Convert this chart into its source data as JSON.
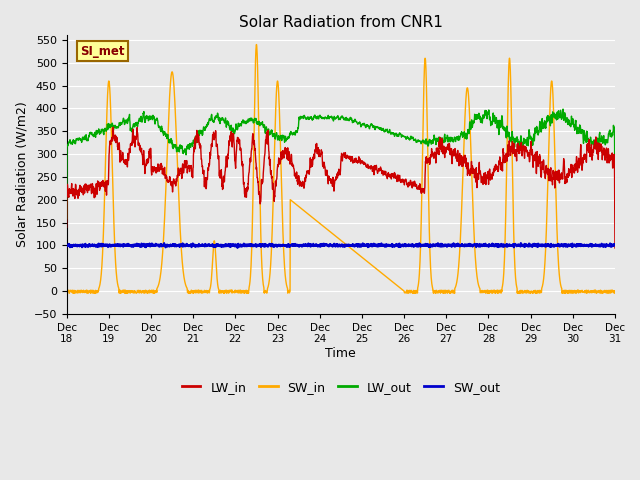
{
  "title": "Solar Radiation from CNR1",
  "xlabel": "Time",
  "ylabel": "Solar Radiation (W/m2)",
  "ylim": [
    -50,
    560
  ],
  "yticks": [
    -50,
    0,
    50,
    100,
    150,
    200,
    250,
    300,
    350,
    400,
    450,
    500,
    550
  ],
  "background_color": "#e8e8e8",
  "plot_bg_color": "#e8e8e8",
  "grid_color": "white",
  "colors": {
    "LW_in": "#cc0000",
    "SW_in": "#ffaa00",
    "LW_out": "#00aa00",
    "SW_out": "#0000cc"
  },
  "linewidth": 1.0,
  "annotation_text": "SI_met",
  "annotation_box_color": "#ffff99",
  "annotation_box_edge": "#996600",
  "n_days": 13,
  "n_pts": 2600
}
